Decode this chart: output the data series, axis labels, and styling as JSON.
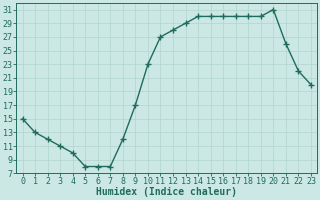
{
  "x": [
    0,
    1,
    2,
    3,
    4,
    5,
    6,
    7,
    8,
    9,
    10,
    11,
    12,
    13,
    14,
    15,
    16,
    17,
    18,
    19,
    20,
    21,
    22,
    23
  ],
  "y": [
    15,
    13,
    12,
    11,
    10,
    8,
    8,
    8,
    12,
    17,
    23,
    27,
    28,
    29,
    30,
    30,
    30,
    30,
    30,
    30,
    31,
    26,
    22,
    20
  ],
  "line_color": "#1f6b5e",
  "marker": "P",
  "marker_size": 3,
  "bg_color": "#cce8e4",
  "grid_color": "#b0d4cc",
  "xlabel": "Humidex (Indice chaleur)",
  "ylabel": "",
  "xlim": [
    -0.5,
    23.5
  ],
  "ylim": [
    7,
    32
  ],
  "yticks": [
    7,
    9,
    11,
    13,
    15,
    17,
    19,
    21,
    23,
    25,
    27,
    29,
    31
  ],
  "xticks": [
    0,
    1,
    2,
    3,
    4,
    5,
    6,
    7,
    8,
    9,
    10,
    11,
    12,
    13,
    14,
    15,
    16,
    17,
    18,
    19,
    20,
    21,
    22,
    23
  ],
  "tick_color": "#1f6b5e",
  "xlabel_fontsize": 7,
  "tick_fontsize": 6
}
